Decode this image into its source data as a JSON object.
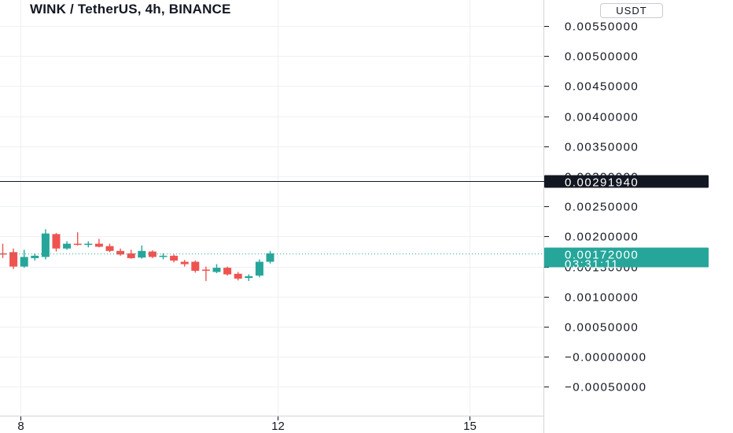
{
  "header": {
    "title": "WINK / TetherUS, 4h, BINANCE",
    "currency": "USDT"
  },
  "colors": {
    "up": "#26a69a",
    "down": "#ef5350",
    "grid": "#eef0f4",
    "axis_border": "#d1d4dc",
    "crosshair_tag": "#131722",
    "price_tag": "#26a69a"
  },
  "chart_data": {
    "type": "candlestick",
    "title": "WINK / TetherUS, 4h, BINANCE",
    "y_ticks": [
      "0.00550000",
      "0.00500000",
      "0.00450000",
      "0.00400000",
      "0.00350000",
      "0.00300000",
      "0.00250000",
      "0.00200000",
      "0.00150000",
      "0.00100000",
      "0.00050000",
      "−0.00000000",
      "−0.00050000"
    ],
    "y_tick_values": [
      0.0055,
      0.005,
      0.0045,
      0.004,
      0.0035,
      0.003,
      0.0025,
      0.002,
      0.0015,
      0.001,
      0.0005,
      0.0,
      -0.0005
    ],
    "x_ticks": [
      {
        "label": "8",
        "bar": 1.7
      },
      {
        "label": "12",
        "bar": 25.7
      },
      {
        "label": "15",
        "bar": 43.7
      }
    ],
    "crosshair": {
      "value": 0.0029194,
      "label": "0.00291940"
    },
    "last_price": {
      "value": 0.00172,
      "label": "0.00172000",
      "countdown": "03:31:11"
    },
    "grid": true,
    "candles": [
      {
        "o": 0.00172,
        "h": 0.00188,
        "l": 0.00164,
        "c": 0.0017
      },
      {
        "o": 0.00174,
        "h": 0.0018,
        "l": 0.00146,
        "c": 0.0015
      },
      {
        "o": 0.0015,
        "h": 0.00178,
        "l": 0.00148,
        "c": 0.00166
      },
      {
        "o": 0.00164,
        "h": 0.00172,
        "l": 0.0016,
        "c": 0.00168
      },
      {
        "o": 0.00166,
        "h": 0.00212,
        "l": 0.00162,
        "c": 0.00205
      },
      {
        "o": 0.00204,
        "h": 0.00206,
        "l": 0.00175,
        "c": 0.0018
      },
      {
        "o": 0.0018,
        "h": 0.00192,
        "l": 0.00178,
        "c": 0.00188
      },
      {
        "o": 0.00188,
        "h": 0.00207,
        "l": 0.00185,
        "c": 0.00187
      },
      {
        "o": 0.00187,
        "h": 0.00192,
        "l": 0.00182,
        "c": 0.00188
      },
      {
        "o": 0.00188,
        "h": 0.00196,
        "l": 0.00182,
        "c": 0.00183
      },
      {
        "o": 0.00184,
        "h": 0.00188,
        "l": 0.00174,
        "c": 0.00176
      },
      {
        "o": 0.00176,
        "h": 0.0018,
        "l": 0.00168,
        "c": 0.0017
      },
      {
        "o": 0.00172,
        "h": 0.00178,
        "l": 0.00163,
        "c": 0.00164
      },
      {
        "o": 0.00165,
        "h": 0.00185,
        "l": 0.00163,
        "c": 0.00176
      },
      {
        "o": 0.00175,
        "h": 0.00177,
        "l": 0.00164,
        "c": 0.00166
      },
      {
        "o": 0.00166,
        "h": 0.00172,
        "l": 0.00162,
        "c": 0.00168
      },
      {
        "o": 0.00168,
        "h": 0.0017,
        "l": 0.00157,
        "c": 0.0016
      },
      {
        "o": 0.00158,
        "h": 0.00161,
        "l": 0.0015,
        "c": 0.00154
      },
      {
        "o": 0.00158,
        "h": 0.0016,
        "l": 0.0014,
        "c": 0.00143
      },
      {
        "o": 0.00145,
        "h": 0.0015,
        "l": 0.00126,
        "c": 0.00144
      },
      {
        "o": 0.00141,
        "h": 0.00154,
        "l": 0.00139,
        "c": 0.00148
      },
      {
        "o": 0.00148,
        "h": 0.0015,
        "l": 0.00135,
        "c": 0.00137
      },
      {
        "o": 0.00138,
        "h": 0.00141,
        "l": 0.00127,
        "c": 0.0013
      },
      {
        "o": 0.00131,
        "h": 0.00137,
        "l": 0.00126,
        "c": 0.00134
      },
      {
        "o": 0.00135,
        "h": 0.00162,
        "l": 0.00132,
        "c": 0.00158
      },
      {
        "o": 0.00158,
        "h": 0.00176,
        "l": 0.00155,
        "c": 0.00172
      }
    ]
  }
}
